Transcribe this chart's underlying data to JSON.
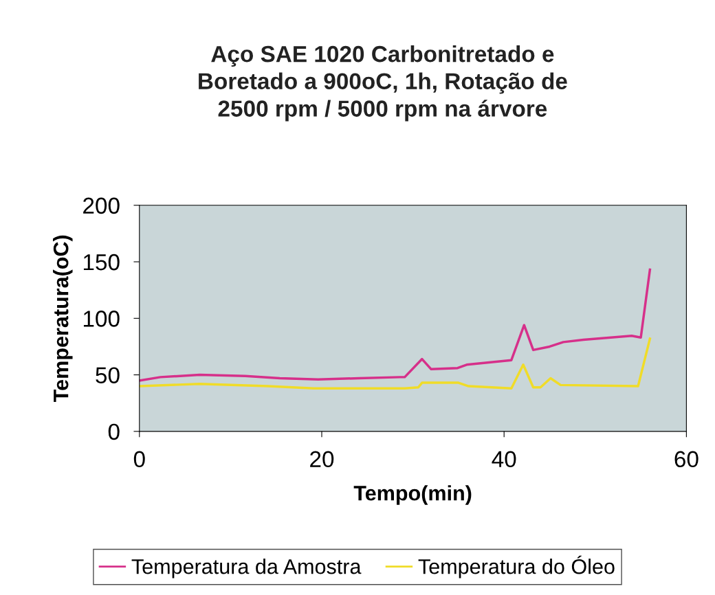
{
  "chart_data": {
    "type": "line",
    "title": "Aço SAE 1020 Carbonitretado e\nBoretado a 900oC, 1h, Rotação de\n2500 rpm / 5000 rpm na árvore",
    "xlabel": "Tempo(min)",
    "ylabel": "Temperatura(oC)",
    "xlim": [
      0,
      60
    ],
    "xticks": [
      0,
      20,
      40,
      60
    ],
    "ylim": [
      0,
      200
    ],
    "yticks": [
      0,
      50,
      100,
      150,
      200
    ],
    "grid": false,
    "legend": "bottom",
    "marker": "none",
    "line_style": "solid",
    "series": [
      {
        "name": "Temperatura da Amostra",
        "color": "#d6308a",
        "x": [
          0.1,
          2.3,
          6.6,
          11.6,
          15.4,
          19.6,
          24.1,
          28.6,
          29.1,
          31.0,
          32.0,
          34.9,
          35.9,
          40.8,
          42.2,
          43.2,
          45.0,
          46.5,
          48.7,
          51.7,
          54.0,
          55.0,
          56.0
        ],
        "values": [
          45,
          48,
          50,
          49,
          47,
          46,
          47,
          48,
          48,
          64,
          55,
          56,
          59,
          63,
          94,
          72,
          75,
          79,
          81,
          83,
          84.5,
          83,
          143
        ]
      },
      {
        "name": "Temperatura do Óleo",
        "color": "#f0dc28",
        "x": [
          0.1,
          6.6,
          14.1,
          19.1,
          29.1,
          30.6,
          31.0,
          35.0,
          36.1,
          40.8,
          42.1,
          43.2,
          44.0,
          45.1,
          46.2,
          54.7,
          56.0
        ],
        "values": [
          40,
          42,
          40,
          38,
          38,
          39,
          43,
          43,
          40,
          38,
          59,
          39,
          39,
          47,
          41,
          40,
          82
        ]
      }
    ]
  }
}
